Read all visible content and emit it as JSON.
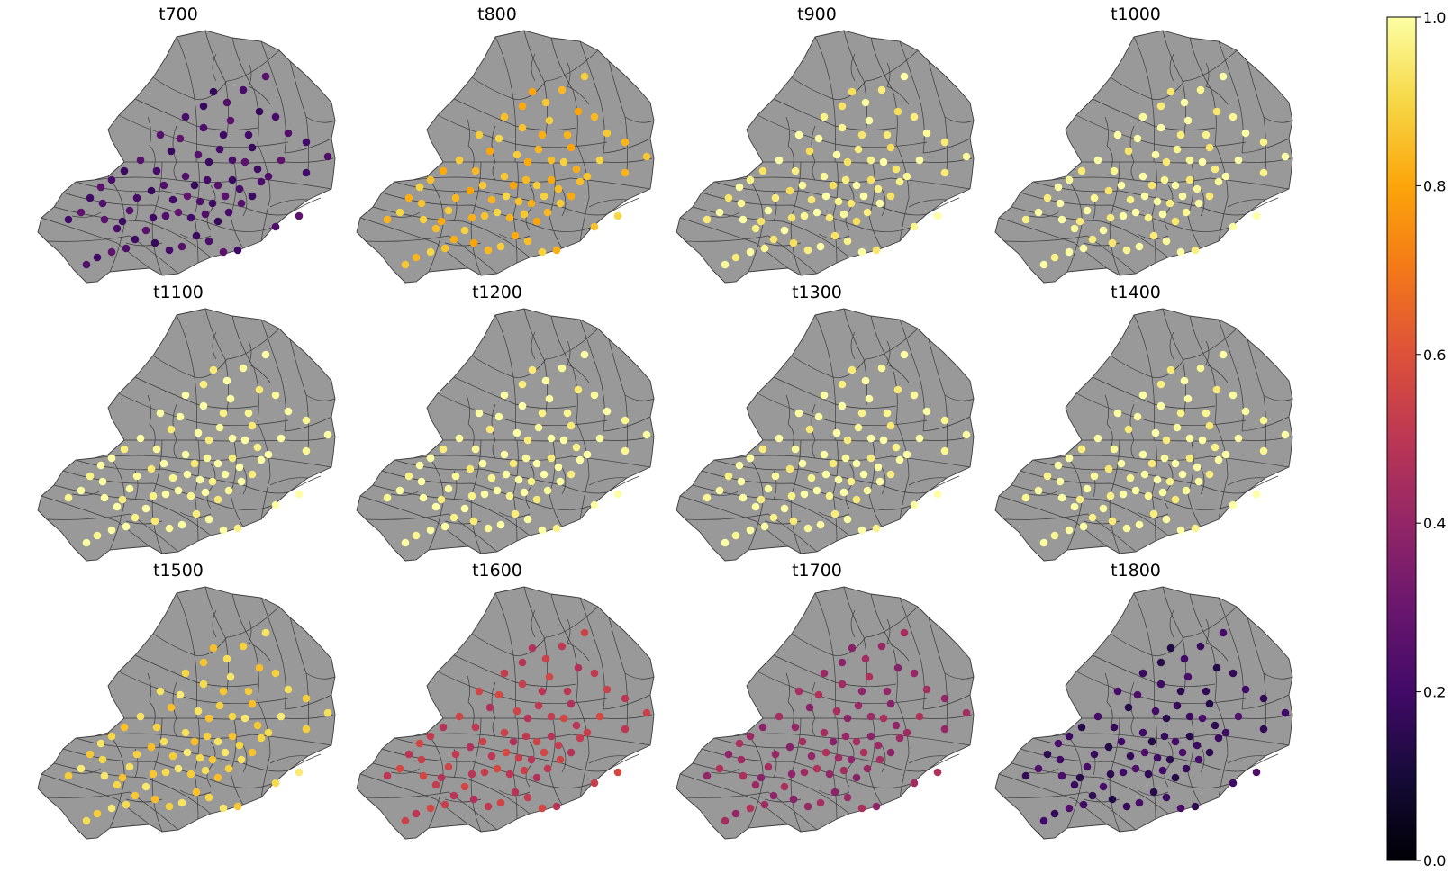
{
  "figure": {
    "panels": [
      {
        "title": "t700",
        "level": 0.22
      },
      {
        "title": "t800",
        "level": 0.85
      },
      {
        "title": "t900",
        "level": 0.97
      },
      {
        "title": "t1000",
        "level": 0.99
      },
      {
        "title": "t1100",
        "level": 1.0
      },
      {
        "title": "t1200",
        "level": 1.0
      },
      {
        "title": "t1300",
        "level": 1.0
      },
      {
        "title": "t1400",
        "level": 1.0
      },
      {
        "title": "t1500",
        "level": 0.9
      },
      {
        "title": "t1600",
        "level": 0.52
      },
      {
        "title": "t1700",
        "level": 0.42
      },
      {
        "title": "t1800",
        "level": 0.18
      }
    ],
    "colorbar": {
      "colormap": "inferno",
      "ticks": [
        "0.0",
        "0.2",
        "0.4",
        "0.6",
        "0.8",
        "1.0"
      ],
      "range": [
        0.0,
        1.0
      ]
    },
    "colors": {
      "region_fill": "#999999",
      "boundary_stroke": "#3c3c3c"
    }
  }
}
